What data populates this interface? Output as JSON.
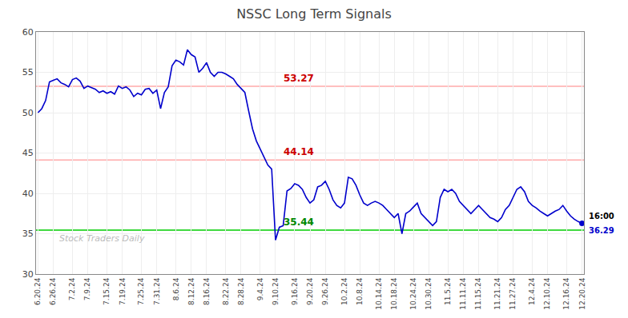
{
  "chart_data": {
    "type": "line",
    "title": "NSSC Long Term Signals",
    "categories": [
      "6.20.24",
      null,
      null,
      null,
      "6.26.24",
      null,
      null,
      null,
      null,
      "7.2.24",
      null,
      null,
      null,
      "7.9.24",
      null,
      null,
      null,
      null,
      "7.15.24",
      null,
      null,
      null,
      "7.19.24",
      null,
      null,
      null,
      null,
      "7.25.24",
      null,
      null,
      null,
      "7.31.24",
      null,
      null,
      null,
      null,
      "8.6.24",
      null,
      null,
      null,
      "8.12.24",
      null,
      null,
      null,
      "8.16.24",
      null,
      null,
      null,
      null,
      "8.22.24",
      null,
      null,
      null,
      "8.28.24",
      null,
      null,
      null,
      null,
      "9.4.24",
      null,
      null,
      null,
      "9.10.24",
      null,
      null,
      null,
      null,
      "9.16.24",
      null,
      null,
      null,
      "9.20.24",
      null,
      null,
      null,
      "9.26.24",
      null,
      null,
      null,
      null,
      "10.2.24",
      null,
      null,
      null,
      "10.8.24",
      null,
      null,
      null,
      null,
      "10.14.24",
      null,
      null,
      null,
      "10.18.24",
      null,
      null,
      null,
      null,
      "10.24.24",
      null,
      null,
      null,
      "10.30.24",
      null,
      null,
      null,
      null,
      "11.5.24",
      null,
      null,
      null,
      "11.11.24",
      null,
      null,
      null,
      "11.15.24",
      null,
      null,
      null,
      null,
      "11.21.24",
      null,
      null,
      null,
      "11.27.24",
      null,
      null,
      null,
      null,
      "12.4.24",
      null,
      null,
      null,
      "12.10.24",
      null,
      null,
      null,
      null,
      "12.16.24",
      null,
      null,
      null,
      "12.20.24"
    ],
    "values": [
      50.0,
      50.5,
      51.5,
      53.8,
      54.0,
      54.2,
      53.7,
      53.5,
      53.2,
      54.1,
      54.3,
      53.9,
      53.0,
      53.3,
      53.1,
      52.9,
      52.5,
      52.7,
      52.4,
      52.6,
      52.3,
      53.3,
      53.0,
      53.2,
      52.8,
      52.0,
      52.4,
      52.2,
      52.9,
      53.0,
      52.4,
      52.8,
      50.5,
      52.5,
      53.2,
      55.8,
      56.5,
      56.3,
      55.9,
      57.8,
      57.2,
      56.9,
      55.0,
      55.5,
      56.2,
      55.0,
      54.5,
      55.0,
      55.0,
      54.8,
      54.5,
      54.2,
      53.5,
      53.0,
      52.5,
      50.2,
      48.0,
      46.5,
      45.5,
      44.5,
      43.5,
      43.0,
      34.2,
      35.8,
      36.0,
      40.3,
      40.6,
      41.2,
      41.0,
      40.5,
      39.5,
      38.8,
      39.2,
      40.8,
      41.0,
      41.5,
      40.5,
      39.2,
      38.5,
      38.2,
      38.8,
      42.0,
      41.8,
      41.0,
      39.8,
      38.8,
      38.5,
      38.8,
      39.0,
      38.8,
      38.5,
      38.0,
      37.5,
      37.0,
      37.5,
      35.0,
      37.5,
      37.8,
      38.3,
      38.8,
      37.5,
      37.0,
      36.5,
      36.0,
      36.5,
      39.5,
      40.5,
      40.2,
      40.5,
      40.0,
      39.0,
      38.5,
      38.0,
      37.5,
      38.0,
      38.5,
      38.0,
      37.5,
      37.0,
      36.8,
      36.5,
      37.0,
      38.0,
      38.5,
      39.5,
      40.5,
      40.8,
      40.2,
      39.0,
      38.5,
      38.2,
      37.8,
      37.5,
      37.2,
      37.5,
      37.8,
      38.0,
      38.5,
      37.8,
      37.2,
      36.8,
      36.5,
      36.29
    ],
    "color": "#0000cc",
    "ylim": [
      30,
      60
    ],
    "yticks": [
      30,
      35,
      40,
      45,
      50,
      55,
      60
    ],
    "grid": true,
    "reference_lines": [
      {
        "y": 53.27,
        "label": "53.27",
        "color": "#ffaaaa",
        "label_color": "#cc0000"
      },
      {
        "y": 44.14,
        "label": "44.14",
        "color": "#ffaaaa",
        "label_color": "#cc0000"
      },
      {
        "y": 35.44,
        "label": "35.44",
        "color": "#00cc00",
        "label_color": "#008800"
      }
    ],
    "annotations": [
      {
        "text": "16:00",
        "color": "#000000"
      },
      {
        "text": "36.29",
        "color": "#0000cc"
      }
    ],
    "watermark": {
      "text": "Stock Traders Daily",
      "color": "#bbbbbb"
    }
  }
}
